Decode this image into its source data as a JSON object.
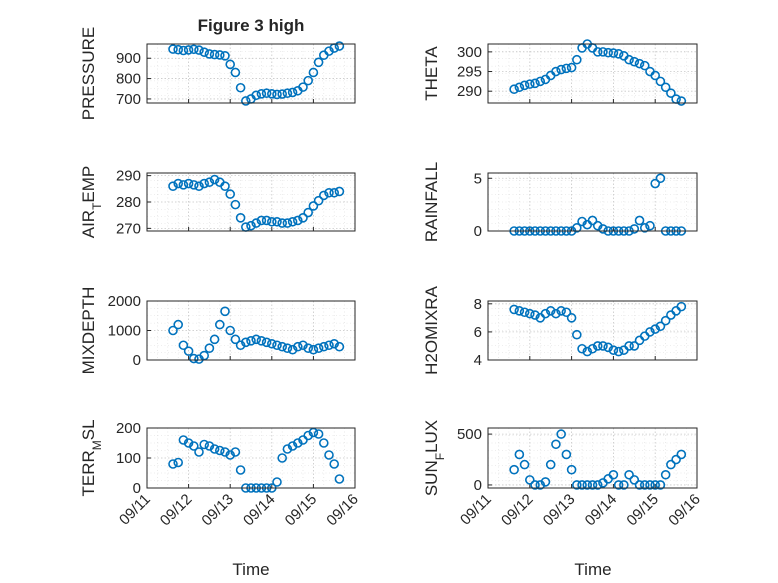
{
  "figure_title": "Figure 3 high",
  "colors": {
    "marker": "#0072BD",
    "axis": "#262626"
  },
  "chart_data": [
    {
      "name": "pressure",
      "type": "scatter",
      "ylabel": "PRESSURE",
      "ylim": [
        680,
        970
      ],
      "yticks": [
        700,
        800,
        900
      ],
      "yticklabels": [
        "700",
        "800",
        "900"
      ],
      "grid": true,
      "x": [
        "09/11 15:00",
        "09/11 18:00",
        "09/11 21:00",
        "09/12 00:00",
        "09/12 03:00",
        "09/12 06:00",
        "09/12 09:00",
        "09/12 12:00",
        "09/12 15:00",
        "09/12 18:00",
        "09/12 21:00",
        "09/13 00:00",
        "09/13 03:00",
        "09/13 06:00",
        "09/13 09:00",
        "09/13 12:00",
        "09/13 15:00",
        "09/13 18:00",
        "09/13 21:00",
        "09/14 00:00",
        "09/14 03:00",
        "09/14 06:00",
        "09/14 09:00",
        "09/14 12:00",
        "09/14 15:00",
        "09/14 18:00",
        "09/14 21:00",
        "09/15 00:00",
        "09/15 03:00",
        "09/15 06:00",
        "09/15 09:00",
        "09/15 12:00",
        "09/15 15:00"
      ],
      "y": [
        945,
        942,
        938,
        941,
        944,
        940,
        930,
        921,
        918,
        916,
        912,
        870,
        830,
        755,
        690,
        700,
        718,
        725,
        728,
        725,
        722,
        724,
        728,
        732,
        740,
        758,
        790,
        830,
        880,
        915,
        935,
        950,
        960
      ]
    },
    {
      "name": "theta",
      "type": "scatter",
      "ylabel": "THETA",
      "ylim": [
        287,
        302
      ],
      "yticks": [
        290,
        295,
        300
      ],
      "yticklabels": [
        "290",
        "295",
        "300"
      ],
      "grid": true,
      "x": [
        "09/11 15:00",
        "09/11 18:00",
        "09/11 21:00",
        "09/12 00:00",
        "09/12 03:00",
        "09/12 06:00",
        "09/12 09:00",
        "09/12 12:00",
        "09/12 15:00",
        "09/12 18:00",
        "09/12 21:00",
        "09/13 00:00",
        "09/13 03:00",
        "09/13 06:00",
        "09/13 09:00",
        "09/13 12:00",
        "09/13 15:00",
        "09/13 18:00",
        "09/13 21:00",
        "09/14 00:00",
        "09/14 03:00",
        "09/14 06:00",
        "09/14 09:00",
        "09/14 12:00",
        "09/14 15:00",
        "09/14 18:00",
        "09/14 21:00",
        "09/15 00:00",
        "09/15 03:00",
        "09/15 06:00",
        "09/15 09:00",
        "09/15 12:00",
        "09/15 15:00"
      ],
      "y": [
        290.5,
        291,
        291.5,
        291.8,
        292,
        292.5,
        293,
        294,
        295,
        295.5,
        295.8,
        296,
        298,
        301,
        302,
        301,
        300,
        300,
        299.8,
        299.7,
        299.5,
        299,
        298,
        297.5,
        297,
        296.5,
        295,
        294,
        292.5,
        291,
        289.5,
        288,
        287.5
      ]
    },
    {
      "name": "air_temp",
      "type": "scatter",
      "ylabel": "AIR_TEMP",
      "ylim": [
        269,
        291
      ],
      "yticks": [
        270,
        280,
        290
      ],
      "yticklabels": [
        "270",
        "280",
        "290"
      ],
      "grid": true,
      "x": [
        "09/11 15:00",
        "09/11 18:00",
        "09/11 21:00",
        "09/12 00:00",
        "09/12 03:00",
        "09/12 06:00",
        "09/12 09:00",
        "09/12 12:00",
        "09/12 15:00",
        "09/12 18:00",
        "09/12 21:00",
        "09/13 00:00",
        "09/13 03:00",
        "09/13 06:00",
        "09/13 09:00",
        "09/13 12:00",
        "09/13 15:00",
        "09/13 18:00",
        "09/13 21:00",
        "09/14 00:00",
        "09/14 03:00",
        "09/14 06:00",
        "09/14 09:00",
        "09/14 12:00",
        "09/14 15:00",
        "09/14 18:00",
        "09/14 21:00",
        "09/15 00:00",
        "09/15 03:00",
        "09/15 06:00",
        "09/15 09:00",
        "09/15 12:00",
        "09/15 15:00"
      ],
      "y": [
        286,
        287,
        286.5,
        287,
        286.5,
        286,
        287,
        287.5,
        288.5,
        287.5,
        286,
        283,
        279,
        274,
        270.5,
        271,
        272,
        273,
        273,
        272.5,
        272.5,
        272,
        272,
        272.5,
        273,
        274,
        276,
        278.5,
        280.5,
        282.5,
        283.5,
        283.5,
        284
      ]
    },
    {
      "name": "rainfall",
      "type": "scatter",
      "ylabel": "RAINFALL",
      "ylim": [
        0,
        5.5
      ],
      "yticks": [
        0,
        5
      ],
      "yticklabels": [
        "0",
        "5"
      ],
      "grid": true,
      "x": [
        "09/11 15:00",
        "09/11 18:00",
        "09/11 21:00",
        "09/12 00:00",
        "09/12 03:00",
        "09/12 06:00",
        "09/12 09:00",
        "09/12 12:00",
        "09/12 15:00",
        "09/12 18:00",
        "09/12 21:00",
        "09/13 00:00",
        "09/13 03:00",
        "09/13 06:00",
        "09/13 09:00",
        "09/13 12:00",
        "09/13 15:00",
        "09/13 18:00",
        "09/13 21:00",
        "09/14 00:00",
        "09/14 03:00",
        "09/14 06:00",
        "09/14 09:00",
        "09/14 12:00",
        "09/14 15:00",
        "09/14 18:00",
        "09/14 21:00",
        "09/15 00:00",
        "09/15 03:00",
        "09/15 06:00",
        "09/15 09:00",
        "09/15 12:00",
        "09/15 15:00"
      ],
      "y": [
        0,
        0,
        0,
        0,
        0,
        0,
        0,
        0,
        0,
        0,
        0,
        0,
        0.3,
        0.9,
        0.6,
        1,
        0.5,
        0.2,
        0,
        0,
        0,
        0,
        0,
        0.2,
        1,
        0.3,
        0.5,
        4.5,
        5,
        0,
        0,
        0,
        0
      ]
    },
    {
      "name": "mixdepth",
      "type": "scatter",
      "ylabel": "MIXDEPTH",
      "ylim": [
        0,
        2000
      ],
      "yticks": [
        0,
        1000,
        2000
      ],
      "yticklabels": [
        "0",
        "1000",
        "2000"
      ],
      "grid": true,
      "x": [
        "09/11 15:00",
        "09/11 18:00",
        "09/11 21:00",
        "09/12 00:00",
        "09/12 03:00",
        "09/12 06:00",
        "09/12 09:00",
        "09/12 12:00",
        "09/12 15:00",
        "09/12 18:00",
        "09/12 21:00",
        "09/13 00:00",
        "09/13 03:00",
        "09/13 06:00",
        "09/13 09:00",
        "09/13 12:00",
        "09/13 15:00",
        "09/13 18:00",
        "09/13 21:00",
        "09/14 00:00",
        "09/14 03:00",
        "09/14 06:00",
        "09/14 09:00",
        "09/14 12:00",
        "09/14 15:00",
        "09/14 18:00",
        "09/14 21:00",
        "09/15 00:00",
        "09/15 03:00",
        "09/15 06:00",
        "09/15 09:00",
        "09/15 12:00",
        "09/15 15:00"
      ],
      "y": [
        1000,
        1200,
        500,
        300,
        50,
        30,
        150,
        400,
        700,
        1200,
        1650,
        1000,
        700,
        500,
        600,
        650,
        700,
        650,
        600,
        550,
        500,
        450,
        400,
        350,
        450,
        500,
        400,
        350,
        400,
        450,
        500,
        550,
        450
      ]
    },
    {
      "name": "h2omixra",
      "type": "scatter",
      "ylabel": "H2OMIXRA",
      "ylim": [
        4,
        8.2
      ],
      "yticks": [
        4,
        6,
        8
      ],
      "yticklabels": [
        "4",
        "6",
        "8"
      ],
      "grid": true,
      "x": [
        "09/11 15:00",
        "09/11 18:00",
        "09/11 21:00",
        "09/12 00:00",
        "09/12 03:00",
        "09/12 06:00",
        "09/12 09:00",
        "09/12 12:00",
        "09/12 15:00",
        "09/12 18:00",
        "09/12 21:00",
        "09/13 00:00",
        "09/13 03:00",
        "09/13 06:00",
        "09/13 09:00",
        "09/13 12:00",
        "09/13 15:00",
        "09/13 18:00",
        "09/13 21:00",
        "09/14 00:00",
        "09/14 03:00",
        "09/14 06:00",
        "09/14 09:00",
        "09/14 12:00",
        "09/14 15:00",
        "09/14 18:00",
        "09/14 21:00",
        "09/15 00:00",
        "09/15 03:00",
        "09/15 06:00",
        "09/15 09:00",
        "09/15 12:00",
        "09/15 15:00"
      ],
      "y": [
        7.6,
        7.5,
        7.4,
        7.3,
        7.2,
        7.0,
        7.3,
        7.5,
        7.3,
        7.5,
        7.4,
        7.0,
        5.8,
        4.8,
        4.6,
        4.8,
        5.0,
        5.0,
        4.9,
        4.7,
        4.6,
        4.7,
        5.0,
        5.0,
        5.4,
        5.7,
        6.0,
        6.2,
        6.4,
        6.8,
        7.2,
        7.5,
        7.8
      ]
    },
    {
      "name": "terr_msl",
      "type": "scatter",
      "ylabel": "TERR_MSL",
      "ylim": [
        0,
        200
      ],
      "yticks": [
        0,
        100,
        200
      ],
      "yticklabels": [
        "0",
        "100",
        "200"
      ],
      "grid": true,
      "x": [
        "09/11 15:00",
        "09/11 18:00",
        "09/11 21:00",
        "09/12 00:00",
        "09/12 03:00",
        "09/12 06:00",
        "09/12 09:00",
        "09/12 12:00",
        "09/12 15:00",
        "09/12 18:00",
        "09/12 21:00",
        "09/13 00:00",
        "09/13 03:00",
        "09/13 06:00",
        "09/13 09:00",
        "09/13 12:00",
        "09/13 15:00",
        "09/13 18:00",
        "09/13 21:00",
        "09/14 00:00",
        "09/14 03:00",
        "09/14 06:00",
        "09/14 09:00",
        "09/14 12:00",
        "09/14 15:00",
        "09/14 18:00",
        "09/14 21:00",
        "09/15 00:00",
        "09/15 03:00",
        "09/15 06:00",
        "09/15 09:00",
        "09/15 12:00",
        "09/15 15:00"
      ],
      "y": [
        80,
        85,
        160,
        150,
        140,
        120,
        145,
        140,
        130,
        125,
        120,
        110,
        120,
        60,
        0,
        0,
        0,
        0,
        0,
        0,
        20,
        100,
        130,
        140,
        150,
        160,
        175,
        185,
        180,
        150,
        110,
        80,
        30
      ]
    },
    {
      "name": "sun_flux",
      "type": "scatter",
      "ylabel": "SUN_FLUX",
      "ylim": [
        -30,
        560
      ],
      "yticks": [
        0,
        500
      ],
      "yticklabels": [
        "0",
        "500"
      ],
      "grid": true,
      "x": [
        "09/11 15:00",
        "09/11 18:00",
        "09/11 21:00",
        "09/12 00:00",
        "09/12 03:00",
        "09/12 06:00",
        "09/12 09:00",
        "09/12 12:00",
        "09/12 15:00",
        "09/12 18:00",
        "09/12 21:00",
        "09/13 00:00",
        "09/13 03:00",
        "09/13 06:00",
        "09/13 09:00",
        "09/13 12:00",
        "09/13 15:00",
        "09/13 18:00",
        "09/13 21:00",
        "09/14 00:00",
        "09/14 03:00",
        "09/14 06:00",
        "09/14 09:00",
        "09/14 12:00",
        "09/14 15:00",
        "09/14 18:00",
        "09/14 21:00",
        "09/15 00:00",
        "09/15 03:00",
        "09/15 06:00",
        "09/15 09:00",
        "09/15 12:00",
        "09/15 15:00"
      ],
      "y": [
        150,
        300,
        200,
        50,
        0,
        0,
        30,
        200,
        400,
        500,
        300,
        150,
        0,
        0,
        0,
        0,
        0,
        20,
        60,
        100,
        0,
        0,
        100,
        50,
        0,
        0,
        0,
        0,
        0,
        100,
        200,
        250,
        300
      ]
    }
  ],
  "xaxis": {
    "xlabel": "Time",
    "xlim": [
      "09/11 00:00",
      "09/16 00:00"
    ],
    "ticks": [
      "09/11 00:00",
      "09/12 00:00",
      "09/13 00:00",
      "09/14 00:00",
      "09/15 00:00",
      "09/16 00:00"
    ],
    "ticklabels": [
      "09/11",
      "09/12",
      "09/13",
      "09/14",
      "09/15",
      "09/16"
    ]
  }
}
